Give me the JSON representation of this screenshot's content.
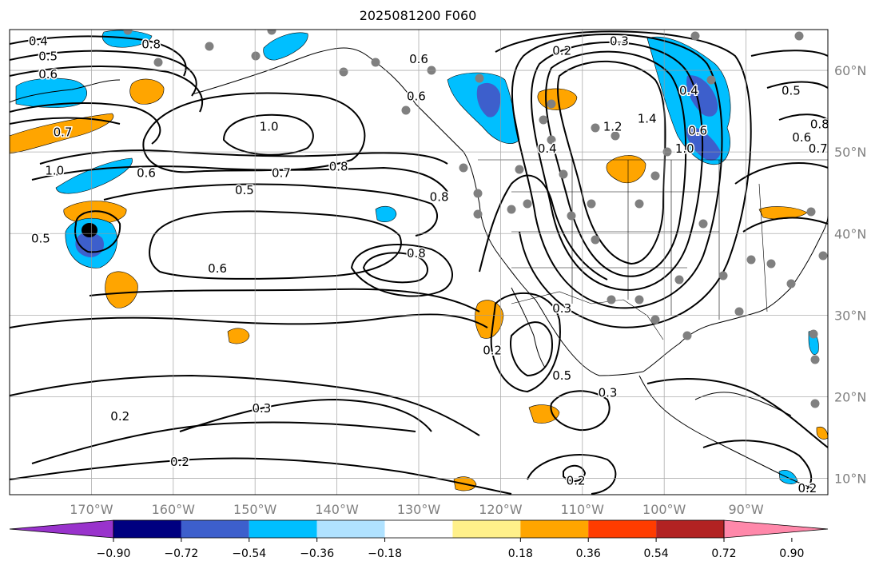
{
  "title": "2025081200 F060",
  "map": {
    "lon_range": [
      -180,
      -80
    ],
    "lat_range": [
      8,
      65
    ],
    "lat_ticks": [
      {
        "value": 60,
        "label": "60°N"
      },
      {
        "value": 50,
        "label": "50°N"
      },
      {
        "value": 40,
        "label": "40°N"
      },
      {
        "value": 30,
        "label": "30°N"
      },
      {
        "value": 20,
        "label": "20°N"
      },
      {
        "value": 10,
        "label": "10°N"
      }
    ],
    "lon_ticks": [
      {
        "value": -170,
        "label": "170°W"
      },
      {
        "value": -160,
        "label": "160°W"
      },
      {
        "value": -150,
        "label": "150°W"
      },
      {
        "value": -140,
        "label": "140°W"
      },
      {
        "value": -130,
        "label": "130°W"
      },
      {
        "value": -120,
        "label": "120°W"
      },
      {
        "value": -110,
        "label": "110°W"
      },
      {
        "value": -100,
        "label": "100°W"
      },
      {
        "value": -90,
        "label": "90°W"
      }
    ],
    "grid": true,
    "contour_labels": [
      {
        "text": "0.4",
        "lon": -176.5,
        "lat": 63.6
      },
      {
        "text": "0.5",
        "lon": -175.3,
        "lat": 61.7
      },
      {
        "text": "0.6",
        "lon": -175.3,
        "lat": 59.5
      },
      {
        "text": "0.8",
        "lon": -162.7,
        "lat": 63.2
      },
      {
        "text": "0.7",
        "lon": -173.5,
        "lat": 52.4
      },
      {
        "text": "1.0",
        "lon": -174.5,
        "lat": 47.7
      },
      {
        "text": "0.6",
        "lon": -163.3,
        "lat": 47.4
      },
      {
        "text": "0.5",
        "lon": -176.2,
        "lat": 39.4
      },
      {
        "text": "1.0",
        "lon": -148.3,
        "lat": 53.1
      },
      {
        "text": "0.7",
        "lon": -146.8,
        "lat": 47.4
      },
      {
        "text": "0.8",
        "lon": -139.8,
        "lat": 48.2
      },
      {
        "text": "0.5",
        "lon": -151.3,
        "lat": 45.3
      },
      {
        "text": "0.6",
        "lon": -154.6,
        "lat": 35.7
      },
      {
        "text": "0.8",
        "lon": -130.3,
        "lat": 37.6
      },
      {
        "text": "0.8",
        "lon": -127.5,
        "lat": 44.5
      },
      {
        "text": "0.6",
        "lon": -130.0,
        "lat": 61.4
      },
      {
        "text": "0.6",
        "lon": -130.3,
        "lat": 56.8
      },
      {
        "text": "0.3",
        "lon": -105.5,
        "lat": 63.6
      },
      {
        "text": "0.2",
        "lon": -112.5,
        "lat": 62.4
      },
      {
        "text": "0.4",
        "lon": -114.3,
        "lat": 50.4
      },
      {
        "text": "1.4",
        "lon": -102.1,
        "lat": 54.1
      },
      {
        "text": "1.2",
        "lon": -106.3,
        "lat": 53.1
      },
      {
        "text": "1.0",
        "lon": -97.5,
        "lat": 50.4
      },
      {
        "text": "0.4",
        "lon": -97.0,
        "lat": 57.5
      },
      {
        "text": "0.6",
        "lon": -95.9,
        "lat": 52.6
      },
      {
        "text": "0.5",
        "lon": -84.5,
        "lat": 57.5
      },
      {
        "text": "0.6",
        "lon": -83.2,
        "lat": 51.8
      },
      {
        "text": "0.7",
        "lon": -81.2,
        "lat": 50.4
      },
      {
        "text": "0.8",
        "lon": -81.0,
        "lat": 53.4
      },
      {
        "text": "0.2",
        "lon": -121.0,
        "lat": 25.7
      },
      {
        "text": "0.3",
        "lon": -112.5,
        "lat": 30.8
      },
      {
        "text": "0.5",
        "lon": -112.5,
        "lat": 22.6
      },
      {
        "text": "0.3",
        "lon": -106.9,
        "lat": 20.5
      },
      {
        "text": "0.3",
        "lon": -149.2,
        "lat": 18.6
      },
      {
        "text": "0.2",
        "lon": -166.5,
        "lat": 17.6
      },
      {
        "text": "0.2",
        "lon": -159.2,
        "lat": 12.0
      },
      {
        "text": "0.2",
        "lon": -110.8,
        "lat": 9.7
      },
      {
        "text": "0.2",
        "lon": -82.5,
        "lat": 8.8
      }
    ]
  },
  "colorbar": {
    "tick_labels": [
      "−0.90",
      "−0.72",
      "−0.54",
      "−0.36",
      "−0.18",
      "0.18",
      "0.36",
      "0.54",
      "0.72",
      "0.90"
    ],
    "bins": [
      {
        "color": "#9933cc"
      },
      {
        "color": "#000080"
      },
      {
        "color": "#3d5fcc"
      },
      {
        "color": "#00bfff"
      },
      {
        "color": "#b0e2ff"
      },
      {
        "color": "#ffffff"
      },
      {
        "color": "#fff08a"
      },
      {
        "color": "#ffa500"
      },
      {
        "color": "#ff3c00"
      },
      {
        "color": "#b22222"
      },
      {
        "color": "#ff88aa"
      }
    ]
  }
}
